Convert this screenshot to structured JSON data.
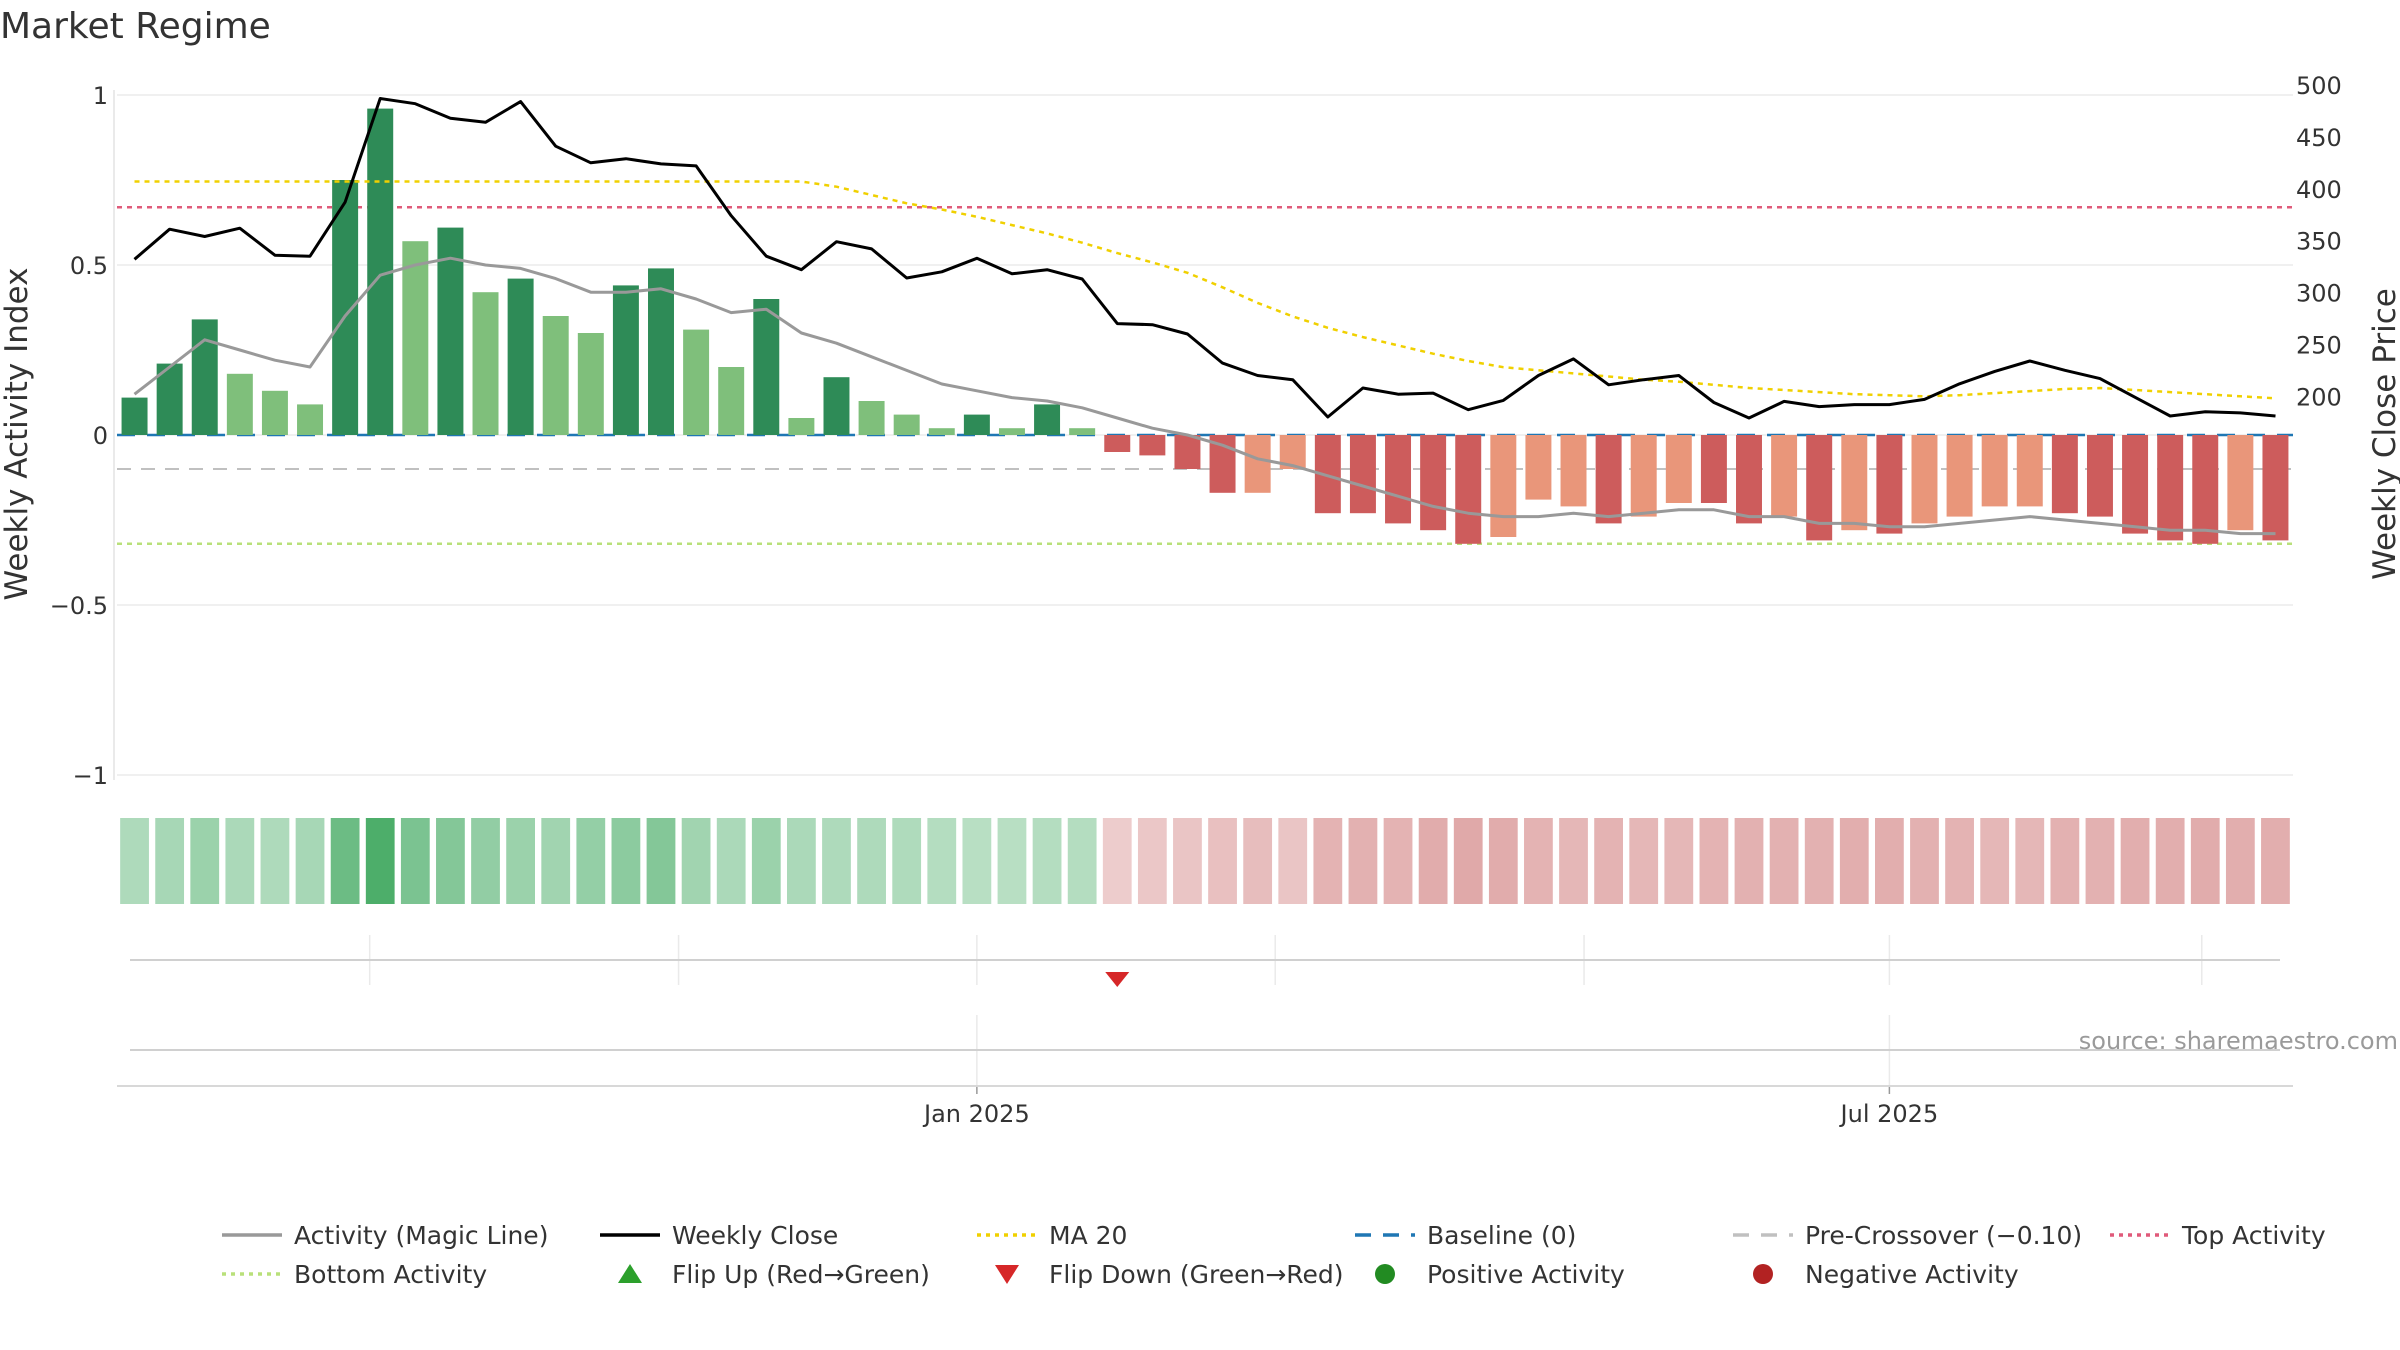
{
  "title": "Market Regime",
  "source": "source: sharemaestro.com",
  "colors": {
    "bar_strong_pos": "#2e8b57",
    "bar_weak_pos": "#7fbf7b",
    "bar_strong_neg": "#cd5c5c",
    "bar_weak_neg": "#e9967a",
    "magic_line": "#999999",
    "weekly_close": "#000000",
    "ma20": "#f0d000",
    "baseline": "#1f77b4",
    "pre_crossover": "#c0c0c0",
    "top_activity": "#e05a7a",
    "bottom_activity": "#b9e07a",
    "flip_up": "#2ca02c",
    "flip_down": "#d62728",
    "positive_activity": "#2ca02c",
    "negative_activity": "#b22222"
  },
  "chart_data": {
    "type": "bar",
    "title": "Market Regime",
    "y_left_label": "Weekly Activity Index",
    "y_right_label": "Weekly Close Price",
    "y_left_range": [
      -1,
      1
    ],
    "y_right_range": [
      160,
      500
    ],
    "y_left_ticks": [
      "1",
      "0.5",
      "0",
      "−0.5",
      "−1"
    ],
    "y_left_tick_values": [
      1,
      0.5,
      0,
      -0.5,
      -1
    ],
    "y_right_ticks": [
      "500",
      "450",
      "400",
      "350",
      "300",
      "250",
      "200"
    ],
    "y_right_tick_values": [
      500,
      450,
      400,
      350,
      300,
      250,
      200
    ],
    "x_ticks": [
      {
        "label": "Jan 2025",
        "week": 24.5
      },
      {
        "label": "Jul 2025",
        "week": 50.5
      }
    ],
    "reference_lines": {
      "baseline": 0,
      "pre_crossover": -0.1,
      "top_activity": 0.67,
      "bottom_activity": -0.32
    },
    "activity": [
      0.11,
      0.21,
      0.34,
      0.18,
      0.13,
      0.09,
      0.75,
      0.96,
      0.57,
      0.61,
      0.42,
      0.46,
      0.35,
      0.3,
      0.44,
      0.49,
      0.31,
      0.2,
      0.4,
      0.05,
      0.17,
      0.1,
      0.06,
      0.02,
      0.06,
      0.02,
      0.09,
      0.02,
      -0.05,
      -0.06,
      -0.1,
      -0.17,
      -0.17,
      -0.1,
      -0.23,
      -0.23,
      -0.26,
      -0.28,
      -0.32,
      -0.3,
      -0.19,
      -0.21,
      -0.26,
      -0.24,
      -0.2,
      -0.2,
      -0.26,
      -0.24,
      -0.31,
      -0.28,
      -0.29,
      -0.26,
      -0.24,
      -0.21,
      -0.21,
      -0.23,
      -0.24,
      -0.29,
      -0.31,
      -0.32,
      -0.28,
      -0.31
    ],
    "activity_strength": [
      "strong",
      "strong",
      "strong",
      "weak",
      "weak",
      "weak",
      "strong",
      "strong",
      "weak",
      "strong",
      "weak",
      "strong",
      "weak",
      "weak",
      "strong",
      "strong",
      "weak",
      "weak",
      "strong",
      "weak",
      "strong",
      "weak",
      "weak",
      "weak",
      "strong",
      "weak",
      "strong",
      "weak",
      "strong",
      "strong",
      "strong",
      "strong",
      "weak",
      "weak",
      "strong",
      "strong",
      "strong",
      "strong",
      "strong",
      "weak",
      "weak",
      "weak",
      "strong",
      "weak",
      "weak",
      "strong",
      "strong",
      "weak",
      "strong",
      "weak",
      "strong",
      "weak",
      "weak",
      "weak",
      "weak",
      "strong",
      "strong",
      "strong",
      "strong",
      "strong",
      "weak",
      "strong"
    ],
    "magic_line": [
      0.12,
      0.2,
      0.28,
      0.25,
      0.22,
      0.2,
      0.35,
      0.47,
      0.5,
      0.52,
      0.5,
      0.49,
      0.46,
      0.42,
      0.42,
      0.43,
      0.4,
      0.36,
      0.37,
      0.3,
      0.27,
      0.23,
      0.19,
      0.15,
      0.13,
      0.11,
      0.1,
      0.08,
      0.05,
      0.02,
      0.0,
      -0.03,
      -0.07,
      -0.09,
      -0.12,
      -0.15,
      -0.18,
      -0.21,
      -0.23,
      -0.24,
      -0.24,
      -0.23,
      -0.24,
      -0.23,
      -0.22,
      -0.22,
      -0.24,
      -0.24,
      -0.26,
      -0.26,
      -0.27,
      -0.27,
      -0.26,
      -0.25,
      -0.24,
      -0.25,
      -0.26,
      -0.27,
      -0.28,
      -0.28,
      -0.29,
      -0.29
    ],
    "weekly_close": [
      332,
      361,
      354,
      362,
      336,
      335,
      387,
      487,
      482,
      468,
      464,
      484,
      441,
      425,
      429,
      424,
      422,
      374,
      335,
      322,
      349,
      342,
      314,
      320,
      333,
      318,
      322,
      313,
      270,
      269,
      260,
      232,
      220,
      216,
      180,
      208,
      202,
      203,
      187,
      196,
      220,
      236,
      211,
      216,
      220,
      194,
      179,
      195,
      190,
      192,
      192,
      197,
      212,
      224,
      234,
      225,
      217,
      199,
      181,
      185,
      184,
      181
    ],
    "ma20": [
      407,
      407,
      407,
      407,
      407,
      407,
      407,
      407,
      407,
      407,
      407,
      407,
      407,
      407,
      407,
      407,
      407,
      407,
      407,
      407,
      402,
      394,
      386,
      380,
      373,
      365,
      357,
      348,
      338,
      329,
      319,
      305,
      290,
      277,
      266,
      257,
      249,
      241,
      234,
      228,
      225,
      222,
      219,
      216,
      214,
      211,
      208,
      206,
      204,
      202,
      201,
      200,
      201,
      203,
      205,
      207,
      208,
      206,
      204,
      202,
      200,
      198
    ],
    "regime_strip": [
      0.28,
      0.32,
      0.4,
      0.3,
      0.28,
      0.32,
      0.7,
      0.9,
      0.6,
      0.55,
      0.45,
      0.4,
      0.36,
      0.44,
      0.5,
      0.55,
      0.36,
      0.3,
      0.4,
      0.3,
      0.28,
      0.28,
      0.26,
      0.24,
      0.22,
      0.22,
      0.24,
      0.24,
      -0.14,
      -0.18,
      -0.2,
      -0.24,
      -0.26,
      -0.2,
      -0.34,
      -0.36,
      -0.34,
      -0.4,
      -0.42,
      -0.4,
      -0.34,
      -0.32,
      -0.34,
      -0.32,
      -0.32,
      -0.34,
      -0.36,
      -0.36,
      -0.36,
      -0.38,
      -0.38,
      -0.36,
      -0.34,
      -0.32,
      -0.32,
      -0.36,
      -0.36,
      -0.38,
      -0.38,
      -0.4,
      -0.38,
      -0.38
    ],
    "flip_events": [
      {
        "type": "down",
        "week": 28.5
      }
    ],
    "legend": [
      {
        "label": "Activity (Magic Line)",
        "style": "line",
        "color": "#999999"
      },
      {
        "label": "Weekly Close",
        "style": "line",
        "color": "#000000"
      },
      {
        "label": "MA 20",
        "style": "dotted",
        "color": "#f0d000"
      },
      {
        "label": "Baseline (0)",
        "style": "dashed",
        "color": "#1f77b4"
      },
      {
        "label": "Pre-Crossover (−0.10)",
        "style": "dashed",
        "color": "#c0c0c0"
      },
      {
        "label": "Top Activity",
        "style": "dotted",
        "color": "#e05a7a"
      },
      {
        "label": "Bottom Activity",
        "style": "dotted",
        "color": "#b9e07a"
      },
      {
        "label": "Flip Up (Red→Green)",
        "style": "triangle-up",
        "color": "#2ca02c"
      },
      {
        "label": "Flip Down (Green→Red)",
        "style": "triangle-down",
        "color": "#d62728"
      },
      {
        "label": "Positive Activity",
        "style": "circle",
        "color": "#228b22"
      },
      {
        "label": "Negative Activity",
        "style": "circle",
        "color": "#b22222"
      }
    ],
    "legend_position": "bottom"
  }
}
